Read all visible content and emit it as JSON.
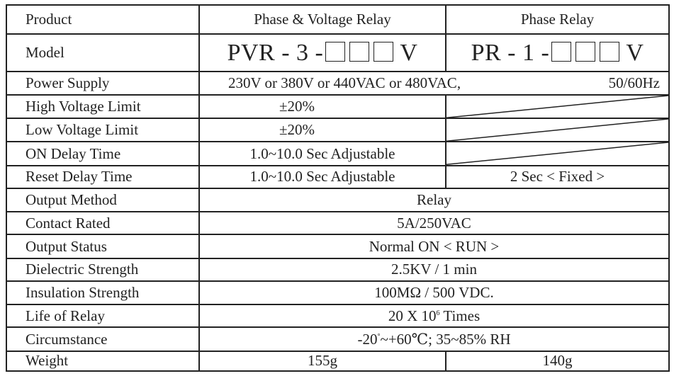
{
  "header": {
    "product_label": "Product",
    "pvr_name": "Phase & Voltage Relay",
    "pr_name": "Phase Relay"
  },
  "model": {
    "label": "Model",
    "pvr_code": "PVR - 3 -",
    "pr_code": "PR - 1 -",
    "suffix": "V"
  },
  "rows": {
    "power_supply": {
      "label": "Power Supply",
      "value": "230V or 380V or 440VAC or 480VAC,",
      "freq": "50/60Hz"
    },
    "high_voltage": {
      "label": "High Voltage Limit",
      "pvr": "±20%"
    },
    "low_voltage": {
      "label": "Low Voltage Limit",
      "pvr": "±20%"
    },
    "on_delay": {
      "label": "ON Delay Time",
      "pvr": "1.0~10.0 Sec Adjustable"
    },
    "reset_delay": {
      "label": "Reset Delay Time",
      "pvr": "1.0~10.0 Sec Adjustable",
      "pr": "2 Sec < Fixed >"
    },
    "output_method": {
      "label": "Output Method",
      "value": "Relay"
    },
    "contact_rated": {
      "label": "Contact Rated",
      "value": "5A/250VAC"
    },
    "output_status": {
      "label": "Output Status",
      "value": "Normal ON < RUN >"
    },
    "dielectric": {
      "label": "Dielectric Strength",
      "value": "2.5KV / 1 min"
    },
    "insulation": {
      "label": "Insulation Strength",
      "value": "100MΩ / 500 VDC."
    },
    "life": {
      "label": "Life of Relay",
      "value_prefix": "20 X 10",
      "value_exp": "6",
      "value_suffix": " Times"
    },
    "circumstance": {
      "label": "Circumstance",
      "t1": "-20",
      "deg": "°",
      "t2": "~+60℃; 35~85% RH"
    },
    "weight": {
      "label": "Weight",
      "pvr": "155g",
      "pr": "140g"
    }
  }
}
